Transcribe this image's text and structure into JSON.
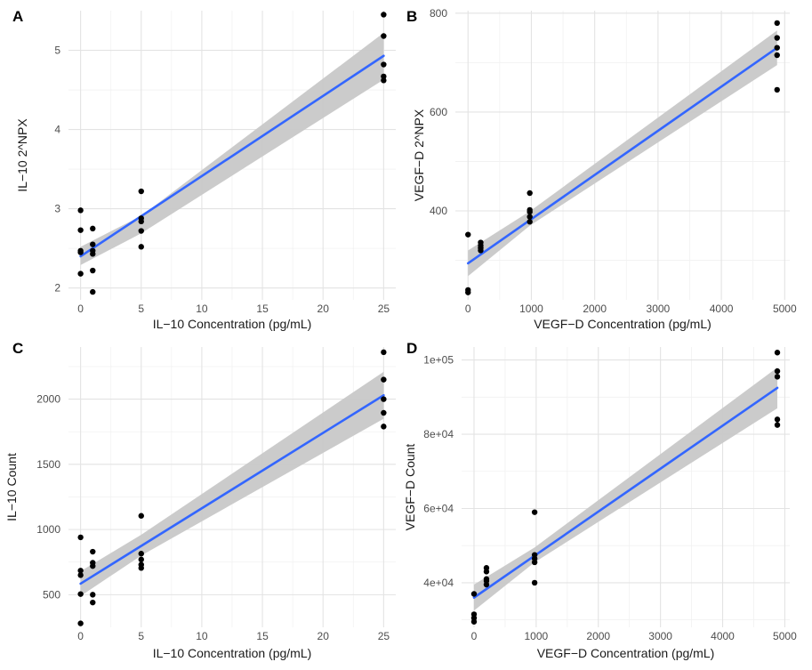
{
  "chart_data": [
    {
      "tag": "A",
      "type": "scatter",
      "xlabel": "IL−10 Concentration (pg/mL)",
      "ylabel": "IL−10 2^NPX",
      "xlim": [
        -1,
        26
      ],
      "ylim": [
        1.85,
        5.5
      ],
      "xticks": [
        0,
        5,
        10,
        15,
        20,
        25
      ],
      "xtick_labels": [
        "0",
        "5",
        "10",
        "15",
        "20",
        "25"
      ],
      "yticks": [
        2,
        3,
        4,
        5
      ],
      "ytick_labels": [
        "2",
        "3",
        "4",
        "5"
      ],
      "points": [
        {
          "x": 0,
          "y": 2.98
        },
        {
          "x": 0,
          "y": 2.73
        },
        {
          "x": 0,
          "y": 2.47
        },
        {
          "x": 0,
          "y": 2.45
        },
        {
          "x": 0,
          "y": 2.18
        },
        {
          "x": 1,
          "y": 2.75
        },
        {
          "x": 1,
          "y": 2.55
        },
        {
          "x": 1,
          "y": 2.47
        },
        {
          "x": 1,
          "y": 2.43
        },
        {
          "x": 1,
          "y": 2.22
        },
        {
          "x": 1,
          "y": 1.95
        },
        {
          "x": 5,
          "y": 3.22
        },
        {
          "x": 5,
          "y": 2.88
        },
        {
          "x": 5,
          "y": 2.84
        },
        {
          "x": 5,
          "y": 2.72
        },
        {
          "x": 5,
          "y": 2.52
        },
        {
          "x": 25,
          "y": 5.45
        },
        {
          "x": 25,
          "y": 5.18
        },
        {
          "x": 25,
          "y": 4.82
        },
        {
          "x": 25,
          "y": 4.67
        },
        {
          "x": 25,
          "y": 4.62
        }
      ],
      "fit": {
        "x0": 0,
        "y0": 2.4,
        "x1": 25,
        "y1": 4.93
      },
      "band": {
        "lower": [
          2.29,
          2.69,
          4.63
        ],
        "upper": [
          2.52,
          2.91,
          5.22
        ],
        "at": [
          0,
          5,
          25
        ]
      }
    },
    {
      "tag": "B",
      "type": "scatter",
      "xlabel": "VEGF−D Concentration (pg/mL)",
      "ylabel": "VEGF−D 2^NPX",
      "xlim": [
        -200,
        5080
      ],
      "ylim": [
        220,
        805
      ],
      "xticks": [
        0,
        1000,
        2000,
        3000,
        4000,
        5000
      ],
      "xtick_labels": [
        "0",
        "1000",
        "2000",
        "3000",
        "4000",
        "5000"
      ],
      "yticks": [
        400,
        600,
        800
      ],
      "ytick_labels": [
        "400",
        "600",
        "800"
      ],
      "points": [
        {
          "x": 0,
          "y": 352
        },
        {
          "x": 0,
          "y": 240
        },
        {
          "x": 0,
          "y": 235
        },
        {
          "x": 200,
          "y": 336
        },
        {
          "x": 200,
          "y": 330
        },
        {
          "x": 200,
          "y": 325
        },
        {
          "x": 200,
          "y": 320
        },
        {
          "x": 975,
          "y": 436
        },
        {
          "x": 975,
          "y": 402
        },
        {
          "x": 975,
          "y": 398
        },
        {
          "x": 975,
          "y": 388
        },
        {
          "x": 975,
          "y": 378
        },
        {
          "x": 4880,
          "y": 780
        },
        {
          "x": 4880,
          "y": 750
        },
        {
          "x": 4880,
          "y": 730
        },
        {
          "x": 4880,
          "y": 715
        },
        {
          "x": 4880,
          "y": 645
        }
      ],
      "fit": {
        "x0": 0,
        "y0": 294,
        "x1": 4880,
        "y1": 730
      },
      "band": {
        "lower": [
          268,
          370,
          695
        ],
        "upper": [
          320,
          399,
          765
        ],
        "at": [
          0,
          975,
          4880
        ]
      }
    },
    {
      "tag": "C",
      "type": "scatter",
      "xlabel": "IL−10 Concentration (pg/mL)",
      "ylabel": "IL−10 Count",
      "xlim": [
        -1,
        26
      ],
      "ylim": [
        250,
        2400
      ],
      "xticks": [
        0,
        5,
        10,
        15,
        20,
        25
      ],
      "xtick_labels": [
        "0",
        "5",
        "10",
        "15",
        "20",
        "25"
      ],
      "yticks": [
        500,
        1000,
        1500,
        2000
      ],
      "ytick_labels": [
        "500",
        "1000",
        "1500",
        "2000"
      ],
      "points": [
        {
          "x": 0,
          "y": 940
        },
        {
          "x": 0,
          "y": 685
        },
        {
          "x": 0,
          "y": 650
        },
        {
          "x": 0,
          "y": 505
        },
        {
          "x": 0,
          "y": 280
        },
        {
          "x": 1,
          "y": 830
        },
        {
          "x": 1,
          "y": 745
        },
        {
          "x": 1,
          "y": 720
        },
        {
          "x": 1,
          "y": 500
        },
        {
          "x": 1,
          "y": 440
        },
        {
          "x": 5,
          "y": 1105
        },
        {
          "x": 5,
          "y": 815
        },
        {
          "x": 5,
          "y": 770
        },
        {
          "x": 5,
          "y": 730
        },
        {
          "x": 5,
          "y": 705
        },
        {
          "x": 25,
          "y": 2360
        },
        {
          "x": 25,
          "y": 2150
        },
        {
          "x": 25,
          "y": 2000
        },
        {
          "x": 25,
          "y": 1895
        },
        {
          "x": 25,
          "y": 1790
        }
      ],
      "fit": {
        "x0": 0,
        "y0": 585,
        "x1": 25,
        "y1": 2030
      },
      "band": {
        "lower": [
          490,
          800,
          1850
        ],
        "upper": [
          680,
          960,
          2210
        ],
        "at": [
          0,
          5,
          25
        ]
      }
    },
    {
      "tag": "D",
      "type": "scatter",
      "xlabel": "VEGF−D Concentration (pg/mL)",
      "ylabel": "VEGF−D Count",
      "xlim": [
        -200,
        5080
      ],
      "ylim": [
        28000,
        103500
      ],
      "xticks": [
        0,
        1000,
        2000,
        3000,
        4000,
        5000
      ],
      "xtick_labels": [
        "0",
        "1000",
        "2000",
        "3000",
        "4000",
        "5000"
      ],
      "yticks": [
        40000,
        60000,
        80000,
        100000
      ],
      "ytick_labels": [
        "4e+04",
        "6e+04",
        "8e+04",
        "1e+05"
      ],
      "points": [
        {
          "x": 0,
          "y": 37000
        },
        {
          "x": 0,
          "y": 31500
        },
        {
          "x": 0,
          "y": 30500
        },
        {
          "x": 0,
          "y": 29500
        },
        {
          "x": 200,
          "y": 44000
        },
        {
          "x": 200,
          "y": 43000
        },
        {
          "x": 200,
          "y": 41000
        },
        {
          "x": 200,
          "y": 40500
        },
        {
          "x": 200,
          "y": 39500
        },
        {
          "x": 975,
          "y": 59000
        },
        {
          "x": 975,
          "y": 47500
        },
        {
          "x": 975,
          "y": 46500
        },
        {
          "x": 975,
          "y": 45500
        },
        {
          "x": 975,
          "y": 40000
        },
        {
          "x": 4880,
          "y": 102000
        },
        {
          "x": 4880,
          "y": 97000
        },
        {
          "x": 4880,
          "y": 95500
        },
        {
          "x": 4880,
          "y": 84000
        },
        {
          "x": 4880,
          "y": 82500
        }
      ],
      "fit": {
        "x0": 0,
        "y0": 36000,
        "x1": 4880,
        "y1": 92500
      },
      "band": {
        "lower": [
          32500,
          45500,
          87000
        ],
        "upper": [
          39500,
          49500,
          98000
        ],
        "at": [
          0,
          975,
          4880
        ]
      }
    }
  ],
  "colors": {
    "point": "#000000",
    "fit_line": "#3366ff",
    "band": "#c8c8c8"
  }
}
